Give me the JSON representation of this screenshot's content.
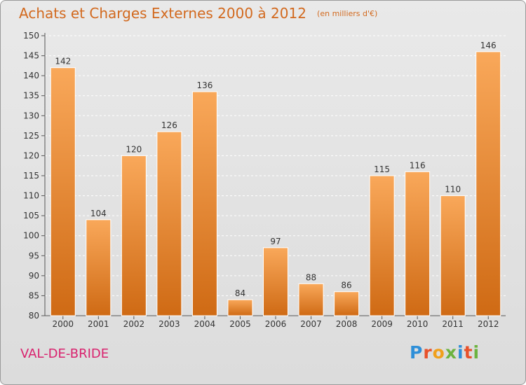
{
  "title": "Achats et Charges Externes 2000 à 2012",
  "subtitle": "(en milliers d'€)",
  "place_name": "VAL-DE-BRIDE",
  "logo": {
    "text": "Proxiti",
    "letters": [
      {
        "ch": "P",
        "color": "#2f8fd8"
      },
      {
        "ch": "r",
        "color": "#e8512a"
      },
      {
        "ch": "o",
        "color": "#f0a01c"
      },
      {
        "ch": "x",
        "color": "#6cb33f"
      },
      {
        "ch": "i",
        "color": "#2f8fd8"
      },
      {
        "ch": "t",
        "color": "#e8512a"
      },
      {
        "ch": "i",
        "color": "#6cb33f"
      }
    ]
  },
  "colors": {
    "title": "#d2691e",
    "bar_light": "#f9a85a",
    "bar_dark": "#cf6a14",
    "place": "#d9226e",
    "grid": "#ffffff"
  },
  "chart_data": {
    "type": "bar",
    "categories": [
      "2000",
      "2001",
      "2002",
      "2003",
      "2004",
      "2005",
      "2006",
      "2007",
      "2008",
      "2009",
      "2010",
      "2011",
      "2012"
    ],
    "values": [
      142,
      104,
      120,
      126,
      136,
      84,
      97,
      88,
      86,
      115,
      116,
      110,
      146
    ],
    "ylim": [
      80,
      150
    ],
    "yticks": [
      80,
      85,
      90,
      95,
      100,
      105,
      110,
      115,
      120,
      125,
      130,
      135,
      140,
      145,
      150
    ],
    "grid": true,
    "data_labels": true,
    "legend": "none"
  }
}
